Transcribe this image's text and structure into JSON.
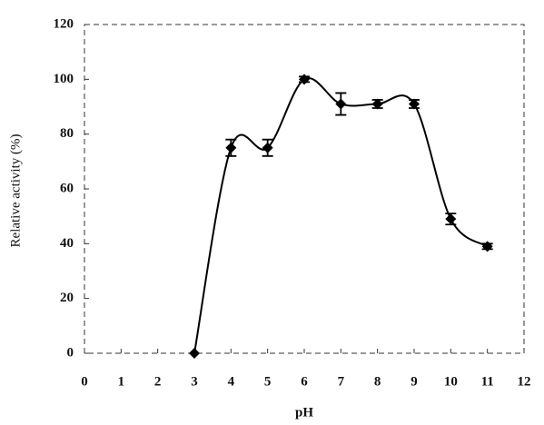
{
  "chart_data": {
    "type": "line",
    "x_label": "pH",
    "y_label": "Relative activity (%)",
    "x": [
      3,
      4,
      5,
      6,
      7,
      8,
      9,
      10,
      11
    ],
    "series": [
      {
        "color": "#000000",
        "values": [
          0,
          75,
          75,
          100,
          91,
          91,
          91,
          49,
          39
        ],
        "errors": [
          0,
          3,
          3,
          1,
          4,
          1.5,
          1.5,
          2,
          1
        ]
      }
    ],
    "xlim": [
      0,
      12
    ],
    "xticks": [
      0,
      1,
      2,
      3,
      4,
      5,
      6,
      7,
      8,
      9,
      10,
      11,
      12
    ],
    "ylim": [
      0,
      120
    ],
    "yticks": [
      0,
      20,
      40,
      60,
      80,
      100,
      120
    ],
    "grid": false
  }
}
